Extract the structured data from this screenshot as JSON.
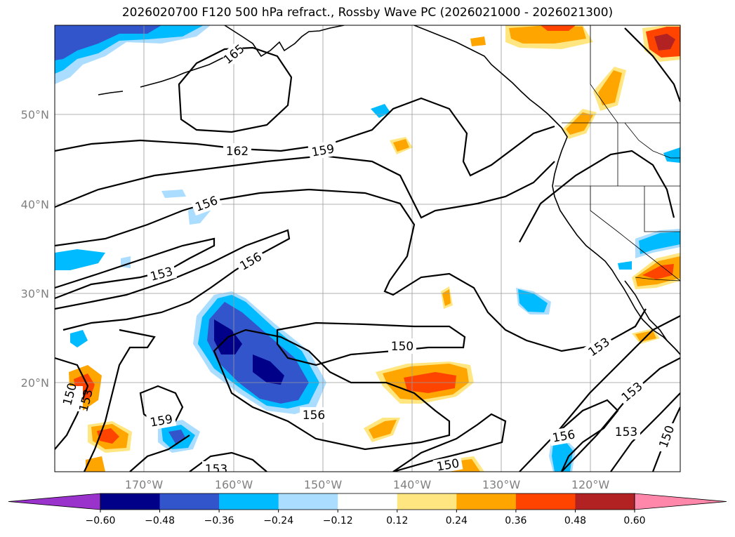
{
  "title": "2026020700 F120 500 hPa refract., Rossby Wave PC (2026021000 - 2026021300)",
  "lat_labels": [
    "50°N",
    "40°N",
    "30°N",
    "20°N"
  ],
  "lon_labels": [
    "170°W",
    "160°W",
    "150°W",
    "140°W",
    "130°W",
    "120°W"
  ],
  "colorbar": {
    "ticks": [
      "−0.60",
      "−0.48",
      "−0.36",
      "−0.24",
      "−0.12",
      "0.12",
      "0.24",
      "0.36",
      "0.48",
      "0.60"
    ],
    "colors": [
      "#9933cc",
      "#000088",
      "#3355cc",
      "#00bbff",
      "#aaddff",
      "#ffffff",
      "#ffe680",
      "#ffa500",
      "#ff4400",
      "#b22222",
      "#ff88aa"
    ]
  },
  "contour_labels": [
    "165",
    "162",
    "159",
    "156",
    "153",
    "156",
    "150",
    "150",
    "153",
    "159",
    "156",
    "153",
    "150",
    "153",
    "153",
    "156",
    "153",
    "150"
  ],
  "colors": {
    "grid": "#999999",
    "contour": "#000000",
    "tick_text": "#808080"
  }
}
